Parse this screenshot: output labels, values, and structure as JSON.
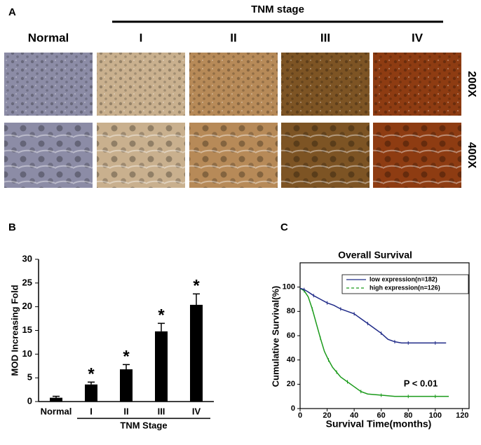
{
  "panel_a": {
    "label": "A",
    "group_title": "TNM stage",
    "columns": [
      "Normal",
      "I",
      "II",
      "III",
      "IV"
    ],
    "rows": [
      "200X",
      "400X"
    ]
  },
  "chart_data": [
    {
      "type": "bar",
      "label": "B",
      "ylabel": "MOD Increasing Fold",
      "xlabel": "TNM Stage",
      "categories": [
        "Normal",
        "I",
        "II",
        "III",
        "IV"
      ],
      "values": [
        0.8,
        3.6,
        6.8,
        14.8,
        20.4
      ],
      "errors": [
        0.3,
        0.5,
        1.0,
        1.7,
        2.3
      ],
      "value_annotations": [
        null,
        "*",
        "*",
        "*",
        "*"
      ],
      "color": "#000000",
      "ylim": [
        0,
        30
      ],
      "yticks": [
        0,
        5,
        10,
        15,
        20,
        25,
        30
      ]
    },
    {
      "type": "line",
      "label": "C",
      "title": "Overall Survival",
      "ylabel": "Cumulative Survival(%)",
      "xlabel": "Survival Time(months)",
      "annotation": "P < 0.01",
      "series": [
        {
          "name": "low expression(n=182)",
          "color": "#1f2a88",
          "dash": false,
          "x": [
            0,
            3,
            6,
            10,
            15,
            20,
            25,
            30,
            35,
            40,
            45,
            50,
            55,
            60,
            65,
            70,
            75,
            80,
            90,
            100,
            108
          ],
          "values": [
            99,
            98,
            96,
            93,
            90,
            87,
            85,
            82,
            80,
            78,
            74,
            70,
            66,
            62,
            57,
            55,
            54,
            54,
            54,
            54,
            54
          ]
        },
        {
          "name": "high expression(n=126)",
          "color": "#1a9a1a",
          "dash": true,
          "x": [
            0,
            3,
            6,
            9,
            12,
            15,
            18,
            21,
            24,
            27,
            30,
            35,
            40,
            45,
            50,
            60,
            70,
            80,
            90,
            100,
            110
          ],
          "values": [
            99,
            97,
            92,
            82,
            70,
            58,
            47,
            40,
            34,
            30,
            26,
            22,
            18,
            14,
            12,
            11,
            10,
            10,
            10,
            10,
            10
          ]
        }
      ],
      "xlim": [
        0,
        125
      ],
      "ylim": [
        0,
        120
      ],
      "xticks": [
        0,
        20,
        40,
        60,
        80,
        100,
        120
      ],
      "yticks": [
        0,
        20,
        40,
        60,
        80,
        100
      ]
    }
  ]
}
